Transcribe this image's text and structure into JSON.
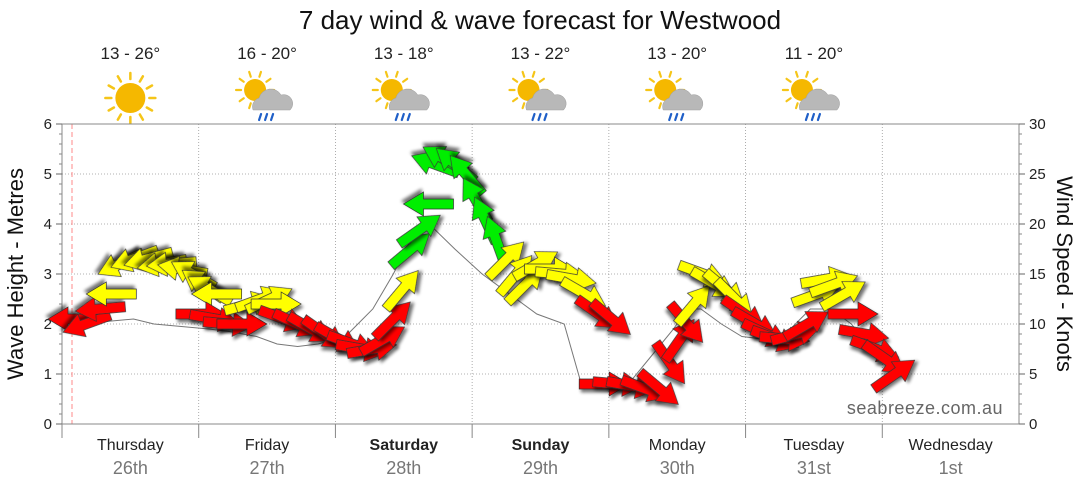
{
  "colors": {
    "light": "#00ee00",
    "moderate": "#ffff00",
    "strong": "#ff0000",
    "wave_line": "#777777",
    "grid": "#999999",
    "now_marker": "#ff8888"
  },
  "chart_data": {
    "type": "line",
    "title": "7 day wind & wave forecast for Westwood",
    "ylabel_left": "Wave Height - Metres",
    "ylabel_right": "Wind Speed - Knots",
    "ylim_left": [
      0,
      6
    ],
    "ylim_right": [
      0,
      30
    ],
    "yticks_left": [
      "0",
      "1",
      "2",
      "3",
      "4",
      "5",
      "6"
    ],
    "yticks_right": [
      "0",
      "5",
      "10",
      "15",
      "20",
      "25",
      "30"
    ],
    "grid": true,
    "watermark": "seabreeze.com.au",
    "days": [
      {
        "name": "Thursday",
        "date": "26th",
        "temps": "13 - 26°",
        "icon": "sun-icon",
        "bold": false
      },
      {
        "name": "Friday",
        "date": "27th",
        "temps": "16 - 20°",
        "icon": "sun-cloud-rain-icon",
        "bold": false
      },
      {
        "name": "Saturday",
        "date": "28th",
        "temps": "13 - 18°",
        "icon": "sun-cloud-rain-icon",
        "bold": true
      },
      {
        "name": "Sunday",
        "date": "29th",
        "temps": "13 - 22°",
        "icon": "sun-cloud-rain-icon",
        "bold": true
      },
      {
        "name": "Monday",
        "date": "30th",
        "temps": "13 - 20°",
        "icon": "sun-cloud-rain-icon",
        "bold": false
      },
      {
        "name": "Tuesday",
        "date": "31st",
        "temps": "11 - 20°",
        "icon": "sun-cloud-rain-icon",
        "bold": false
      },
      {
        "name": "Wednesday",
        "date": "1st",
        "temps": "",
        "icon": "",
        "bold": false
      }
    ],
    "wave_height_m": [
      [
        0.0,
        2.0
      ],
      [
        0.25,
        2.05
      ],
      [
        0.45,
        2.1
      ],
      [
        0.6,
        2.0
      ],
      [
        0.8,
        1.95
      ],
      [
        1.0,
        1.9
      ],
      [
        1.15,
        1.85
      ],
      [
        1.35,
        1.75
      ],
      [
        1.5,
        1.6
      ],
      [
        1.65,
        1.55
      ],
      [
        1.8,
        1.6
      ],
      [
        2.0,
        1.75
      ],
      [
        2.2,
        2.3
      ],
      [
        2.35,
        3.0
      ],
      [
        2.5,
        3.8
      ],
      [
        2.65,
        3.9
      ],
      [
        2.8,
        3.5
      ],
      [
        3.0,
        3.0
      ],
      [
        3.2,
        2.6
      ],
      [
        3.4,
        2.2
      ],
      [
        3.6,
        2.0
      ],
      [
        3.72,
        0.85
      ],
      [
        3.9,
        0.8
      ],
      [
        4.1,
        0.9
      ],
      [
        4.25,
        1.4
      ],
      [
        4.4,
        1.9
      ],
      [
        4.5,
        2.3
      ],
      [
        4.6,
        2.3
      ],
      [
        4.75,
        2.0
      ],
      [
        4.9,
        1.75
      ],
      [
        5.05,
        1.7
      ],
      [
        5.2,
        1.75
      ],
      [
        5.4,
        2.3
      ],
      [
        5.55,
        2.3
      ],
      [
        5.7,
        2.0
      ],
      [
        5.85,
        1.5
      ],
      [
        6.0,
        1.2
      ]
    ],
    "wind": [
      {
        "day": 0.0,
        "knots": 10.5,
        "bearing": 270,
        "class": "strong"
      },
      {
        "day": 0.1,
        "knots": 10.0,
        "bearing": 250,
        "class": "strong"
      },
      {
        "day": 0.2,
        "knots": 11.5,
        "bearing": 265,
        "class": "strong"
      },
      {
        "day": 0.28,
        "knots": 13.0,
        "bearing": 270,
        "class": "moderate"
      },
      {
        "day": 0.35,
        "knots": 16.0,
        "bearing": 245,
        "class": "moderate"
      },
      {
        "day": 0.45,
        "knots": 16.5,
        "bearing": 250,
        "class": "moderate"
      },
      {
        "day": 0.55,
        "knots": 16.5,
        "bearing": 255,
        "class": "moderate"
      },
      {
        "day": 0.65,
        "knots": 16.0,
        "bearing": 260,
        "class": "moderate"
      },
      {
        "day": 0.72,
        "knots": 16.0,
        "bearing": 265,
        "class": "moderate"
      },
      {
        "day": 0.8,
        "knots": 15.5,
        "bearing": 280,
        "class": "moderate"
      },
      {
        "day": 0.88,
        "knots": 15.0,
        "bearing": 300,
        "class": "moderate"
      },
      {
        "day": 0.95,
        "knots": 14.0,
        "bearing": 305,
        "class": "moderate"
      },
      {
        "day": 1.0,
        "knots": 13.5,
        "bearing": 300,
        "class": "moderate"
      },
      {
        "day": 1.05,
        "knots": 13.0,
        "bearing": 270,
        "class": "moderate"
      },
      {
        "day": 0.95,
        "knots": 11.0,
        "bearing": 90,
        "class": "strong"
      },
      {
        "day": 1.05,
        "knots": 10.5,
        "bearing": 100,
        "class": "strong"
      },
      {
        "day": 1.15,
        "knots": 10.0,
        "bearing": 95,
        "class": "strong"
      },
      {
        "day": 1.25,
        "knots": 10.0,
        "bearing": 90,
        "class": "strong"
      },
      {
        "day": 1.3,
        "knots": 12.0,
        "bearing": 75,
        "class": "moderate"
      },
      {
        "day": 1.38,
        "knots": 12.5,
        "bearing": 70,
        "class": "moderate"
      },
      {
        "day": 1.45,
        "knots": 12.5,
        "bearing": 65,
        "class": "moderate"
      },
      {
        "day": 1.5,
        "knots": 12.0,
        "bearing": 90,
        "class": "moderate"
      },
      {
        "day": 1.55,
        "knots": 10.5,
        "bearing": 110,
        "class": "strong"
      },
      {
        "day": 1.65,
        "knots": 10.0,
        "bearing": 115,
        "class": "strong"
      },
      {
        "day": 1.75,
        "knots": 9.5,
        "bearing": 120,
        "class": "strong"
      },
      {
        "day": 1.85,
        "knots": 9.0,
        "bearing": 125,
        "class": "strong"
      },
      {
        "day": 1.95,
        "knots": 8.5,
        "bearing": 120,
        "class": "strong"
      },
      {
        "day": 2.05,
        "knots": 8.0,
        "bearing": 110,
        "class": "strong"
      },
      {
        "day": 2.12,
        "knots": 7.5,
        "bearing": 100,
        "class": "strong"
      },
      {
        "day": 2.2,
        "knots": 7.5,
        "bearing": 80,
        "class": "strong"
      },
      {
        "day": 2.28,
        "knots": 8.5,
        "bearing": 60,
        "class": "strong"
      },
      {
        "day": 2.35,
        "knots": 10.5,
        "bearing": 45,
        "class": "strong"
      },
      {
        "day": 2.42,
        "knots": 13.5,
        "bearing": 40,
        "class": "moderate"
      },
      {
        "day": 2.48,
        "knots": 17.5,
        "bearing": 50,
        "class": "light"
      },
      {
        "day": 2.55,
        "knots": 19.5,
        "bearing": 55,
        "class": "light"
      },
      {
        "day": 2.6,
        "knots": 22.0,
        "bearing": 270,
        "class": "light"
      },
      {
        "day": 2.65,
        "knots": 26.0,
        "bearing": 290,
        "class": "light"
      },
      {
        "day": 2.72,
        "knots": 26.5,
        "bearing": 300,
        "class": "light"
      },
      {
        "day": 2.8,
        "knots": 26.0,
        "bearing": 310,
        "class": "light"
      },
      {
        "day": 2.88,
        "knots": 25.0,
        "bearing": 320,
        "class": "light"
      },
      {
        "day": 2.95,
        "knots": 22.5,
        "bearing": 330,
        "class": "light"
      },
      {
        "day": 3.02,
        "knots": 20.5,
        "bearing": 335,
        "class": "light"
      },
      {
        "day": 3.1,
        "knots": 18.5,
        "bearing": 340,
        "class": "light"
      },
      {
        "day": 3.18,
        "knots": 16.5,
        "bearing": 45,
        "class": "moderate"
      },
      {
        "day": 3.25,
        "knots": 15.0,
        "bearing": 40,
        "class": "moderate"
      },
      {
        "day": 3.32,
        "knots": 14.0,
        "bearing": 45,
        "class": "moderate"
      },
      {
        "day": 3.4,
        "knots": 16.0,
        "bearing": 60,
        "class": "moderate"
      },
      {
        "day": 3.5,
        "knots": 15.5,
        "bearing": 90,
        "class": "moderate"
      },
      {
        "day": 3.58,
        "knots": 15.0,
        "bearing": 95,
        "class": "moderate"
      },
      {
        "day": 3.66,
        "knots": 14.5,
        "bearing": 100,
        "class": "moderate"
      },
      {
        "day": 3.75,
        "knots": 13.0,
        "bearing": 120,
        "class": "moderate"
      },
      {
        "day": 3.85,
        "knots": 11.0,
        "bearing": 125,
        "class": "strong"
      },
      {
        "day": 3.95,
        "knots": 10.5,
        "bearing": 130,
        "class": "strong"
      },
      {
        "day": 3.9,
        "knots": 4.0,
        "bearing": 90,
        "class": "strong"
      },
      {
        "day": 4.0,
        "knots": 4.0,
        "bearing": 95,
        "class": "strong"
      },
      {
        "day": 4.1,
        "knots": 3.8,
        "bearing": 100,
        "class": "strong"
      },
      {
        "day": 4.2,
        "knots": 3.5,
        "bearing": 110,
        "class": "strong"
      },
      {
        "day": 4.3,
        "knots": 3.5,
        "bearing": 130,
        "class": "strong"
      },
      {
        "day": 4.38,
        "knots": 6.0,
        "bearing": 145,
        "class": "strong"
      },
      {
        "day": 4.45,
        "knots": 8.5,
        "bearing": 35,
        "class": "strong"
      },
      {
        "day": 4.5,
        "knots": 10.0,
        "bearing": 140,
        "class": "strong"
      },
      {
        "day": 4.55,
        "knots": 12.0,
        "bearing": 40,
        "class": "moderate"
      },
      {
        "day": 4.62,
        "knots": 15.0,
        "bearing": 110,
        "class": "moderate"
      },
      {
        "day": 4.7,
        "knots": 14.0,
        "bearing": 120,
        "class": "moderate"
      },
      {
        "day": 4.78,
        "knots": 13.5,
        "bearing": 130,
        "class": "moderate"
      },
      {
        "day": 4.85,
        "knots": 12.5,
        "bearing": 135,
        "class": "moderate"
      },
      {
        "day": 4.92,
        "knots": 11.0,
        "bearing": 125,
        "class": "strong"
      },
      {
        "day": 5.0,
        "knots": 10.0,
        "bearing": 120,
        "class": "strong"
      },
      {
        "day": 5.08,
        "knots": 9.0,
        "bearing": 115,
        "class": "strong"
      },
      {
        "day": 5.15,
        "knots": 8.5,
        "bearing": 110,
        "class": "strong"
      },
      {
        "day": 5.22,
        "knots": 8.5,
        "bearing": 95,
        "class": "strong"
      },
      {
        "day": 5.3,
        "knots": 9.0,
        "bearing": 75,
        "class": "strong"
      },
      {
        "day": 5.38,
        "knots": 10.0,
        "bearing": 60,
        "class": "strong"
      },
      {
        "day": 5.45,
        "knots": 13.0,
        "bearing": 70,
        "class": "moderate"
      },
      {
        "day": 5.52,
        "knots": 14.5,
        "bearing": 80,
        "class": "moderate"
      },
      {
        "day": 5.58,
        "knots": 14.0,
        "bearing": 70,
        "class": "moderate"
      },
      {
        "day": 5.65,
        "knots": 13.0,
        "bearing": 60,
        "class": "moderate"
      },
      {
        "day": 5.72,
        "knots": 11.0,
        "bearing": 90,
        "class": "strong"
      },
      {
        "day": 5.8,
        "knots": 9.0,
        "bearing": 100,
        "class": "strong"
      },
      {
        "day": 5.88,
        "knots": 7.5,
        "bearing": 110,
        "class": "strong"
      },
      {
        "day": 5.95,
        "knots": 6.5,
        "bearing": 125,
        "class": "strong"
      },
      {
        "day": 6.02,
        "knots": 5.0,
        "bearing": 55,
        "class": "strong"
      }
    ]
  }
}
